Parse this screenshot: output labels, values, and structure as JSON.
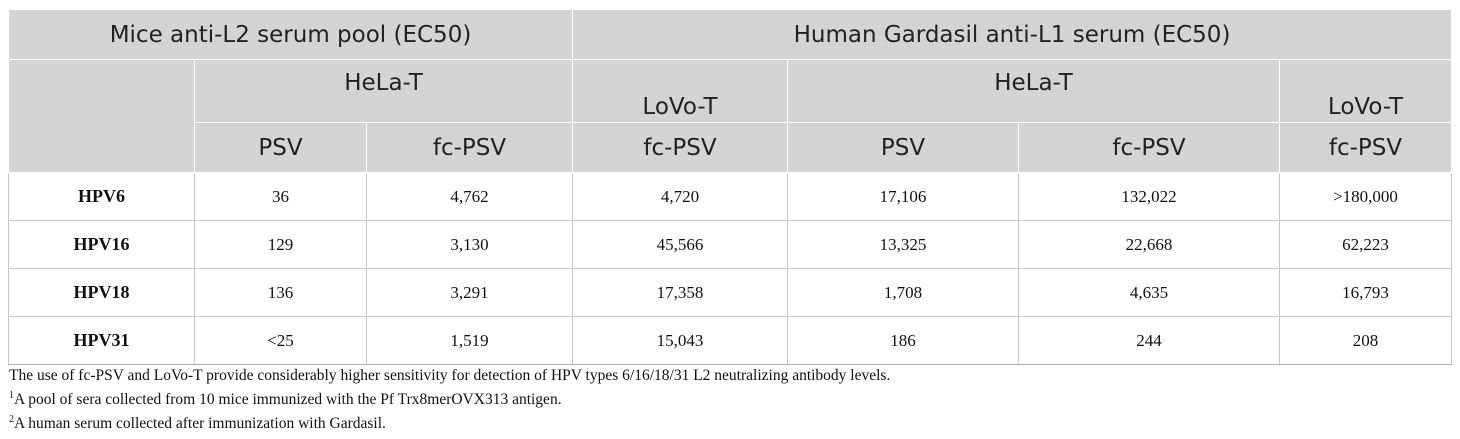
{
  "table": {
    "group_headers": [
      "Mice anti-L2 serum pool (EC50)",
      "Human Gardasil anti-L1 serum (EC50)"
    ],
    "cell_headers": [
      "HeLa-T",
      "LoVo-T",
      "HeLa-T",
      "LoVo-T"
    ],
    "assay_headers": [
      "PSV",
      "fc-PSV",
      "fc-PSV",
      "PSV",
      "fc-PSV",
      "fc-PSV"
    ],
    "rows": [
      [
        "HPV6",
        "36",
        "4,762",
        "4,720",
        "17,106",
        "132,022",
        ">180,000"
      ],
      [
        "HPV16",
        "129",
        "3,130",
        "45,566",
        "13,325",
        "22,668",
        "62,223"
      ],
      [
        "HPV18",
        "136",
        "3,291",
        "17,358",
        "1,708",
        "4,635",
        "16,793"
      ],
      [
        "HPV31",
        "<25",
        "1,519",
        "15,043",
        "186",
        "244",
        "208"
      ]
    ]
  },
  "footnotes": {
    "summary": "The use of fc-PSV and LoVo-T provide considerably higher sensitivity for detection of HPV types 6/16/18/31 L2 neutralizing antibody levels.",
    "note1_marker": "1",
    "note1_text": "A pool of sera collected from 10 mice immunized with the Pf Trx8merOVX313 antigen.",
    "note2_marker": "2",
    "note2_text": "A human serum collected after immunization with Gardasil."
  }
}
